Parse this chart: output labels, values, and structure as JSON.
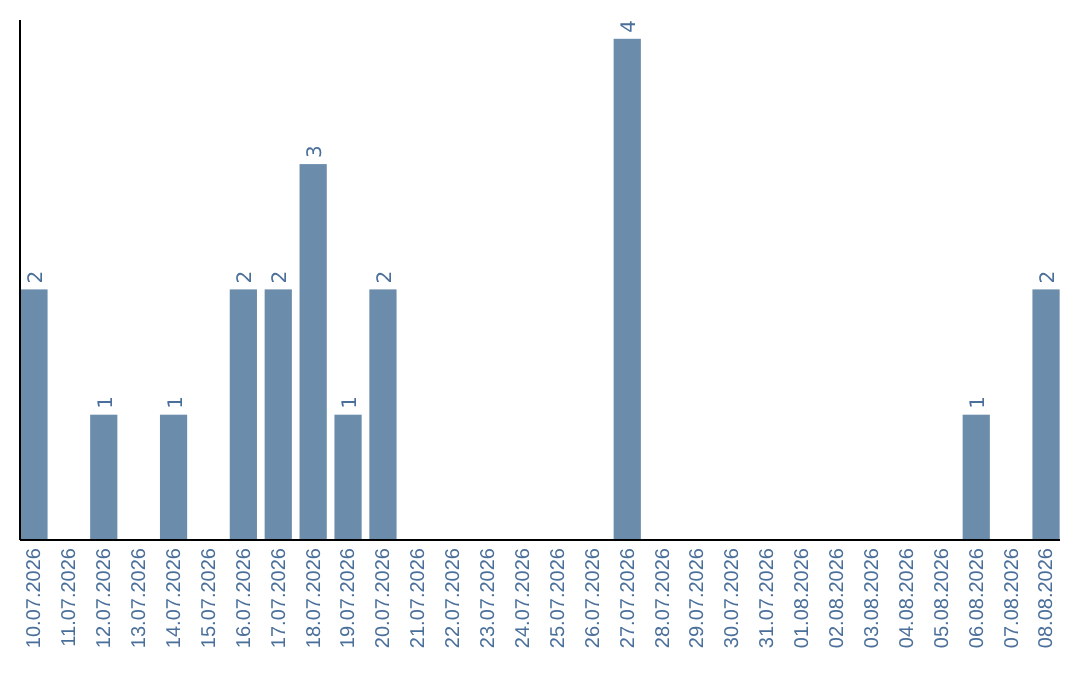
{
  "chart_data": {
    "type": "bar",
    "categories": [
      "10.07.2026",
      "11.07.2026",
      "12.07.2026",
      "13.07.2026",
      "14.07.2026",
      "15.07.2026",
      "16.07.2026",
      "17.07.2026",
      "18.07.2026",
      "19.07.2026",
      "20.07.2026",
      "21.07.2026",
      "22.07.2026",
      "23.07.2026",
      "24.07.2026",
      "25.07.2026",
      "26.07.2026",
      "27.07.2026",
      "28.07.2026",
      "29.07.2026",
      "30.07.2026",
      "31.07.2026",
      "01.08.2026",
      "02.08.2026",
      "03.08.2026",
      "04.08.2026",
      "05.08.2026",
      "06.08.2026",
      "07.08.2026",
      "08.08.2026"
    ],
    "values": [
      2,
      0,
      1,
      0,
      1,
      0,
      2,
      2,
      3,
      1,
      2,
      0,
      0,
      0,
      0,
      0,
      0,
      4,
      0,
      0,
      0,
      0,
      0,
      0,
      0,
      0,
      0,
      1,
      0,
      2
    ],
    "value_labels": [
      "2",
      null,
      "1",
      null,
      "1",
      null,
      "2",
      "2",
      "3",
      "1",
      "2",
      null,
      null,
      null,
      null,
      null,
      null,
      "4",
      null,
      null,
      null,
      null,
      null,
      null,
      null,
      null,
      null,
      "1",
      null,
      "2"
    ],
    "color": "#6b8cab",
    "ylim": [
      0,
      4.15
    ],
    "tick_labels": "x"
  }
}
